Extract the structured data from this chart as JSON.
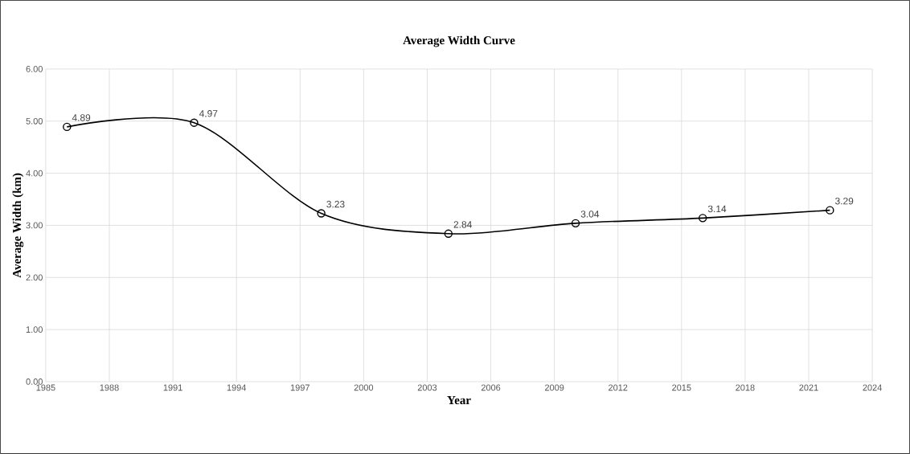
{
  "chart_data": {
    "type": "line",
    "title": "Average Width Curve",
    "xlabel": "Year",
    "ylabel": "Average Width (km)",
    "x": [
      1986,
      1992,
      1998,
      2004,
      2010,
      2016,
      2022
    ],
    "series": [
      {
        "color": "#000000",
        "values": [
          4.89,
          4.97,
          3.23,
          2.84,
          3.04,
          3.14,
          3.29
        ]
      }
    ],
    "value_labels": [
      "4.89",
      "4.97",
      "3.23",
      "2.84",
      "3.04",
      "3.14",
      "3.29"
    ],
    "xlim": [
      1985,
      2024
    ],
    "xticks": [
      1985,
      1988,
      1991,
      1994,
      1997,
      2000,
      2003,
      2006,
      2009,
      2012,
      2015,
      2018,
      2021,
      2024
    ],
    "ylim": [
      0,
      6
    ],
    "yticks": [
      {
        "value": 0,
        "label": "0.00"
      },
      {
        "value": 1,
        "label": "1.00"
      },
      {
        "value": 2,
        "label": "2.00"
      },
      {
        "value": 3,
        "label": "3.00"
      },
      {
        "value": 4,
        "label": "4.00"
      },
      {
        "value": 5,
        "label": "5.00"
      },
      {
        "value": 6,
        "label": "6.00"
      }
    ],
    "grid": true,
    "marker": "circle",
    "line_style": "solid"
  }
}
